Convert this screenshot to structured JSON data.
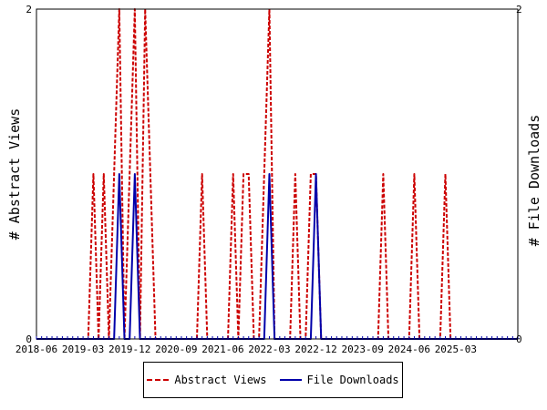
{
  "chart_data": {
    "type": "line",
    "title": "",
    "ylabel_left": "# Abstract Views",
    "ylabel_right": "# File Downloads",
    "ylim_left": [
      0,
      2
    ],
    "ylim_right": [
      0,
      2
    ],
    "yticks_left": [
      "0",
      "2"
    ],
    "yticks_right": [
      "0",
      "2"
    ],
    "xlim": [
      "2018-06",
      "2026-03"
    ],
    "xtick_labels": [
      "2018-06",
      "2019-03",
      "2019-12",
      "2020-09",
      "2021-06",
      "2022-03",
      "2022-12",
      "2023-09",
      "2024-06",
      "2025-03"
    ],
    "grid": false,
    "legend_position": "bottom",
    "series": [
      {
        "name": "Abstract Views",
        "color": "#cc0000",
        "style": "dashed",
        "points": [
          [
            "2019-05",
            1
          ],
          [
            "2019-07",
            1
          ],
          [
            "2019-09",
            1
          ],
          [
            "2019-10",
            2
          ],
          [
            "2019-12",
            1
          ],
          [
            "2020-01",
            2
          ],
          [
            "2020-03",
            2
          ],
          [
            "2020-04",
            1
          ],
          [
            "2021-02",
            1
          ],
          [
            "2021-08",
            1
          ],
          [
            "2021-10",
            1
          ],
          [
            "2021-11",
            1
          ],
          [
            "2022-02",
            1
          ],
          [
            "2022-03",
            2
          ],
          [
            "2022-08",
            1
          ],
          [
            "2022-11",
            1
          ],
          [
            "2022-12",
            1
          ],
          [
            "2024-01",
            1
          ],
          [
            "2024-07",
            1
          ],
          [
            "2025-01",
            1
          ]
        ]
      },
      {
        "name": "File Downloads",
        "color": "#0000aa",
        "style": "solid",
        "points": [
          [
            "2019-10",
            1
          ],
          [
            "2020-01",
            1
          ],
          [
            "2022-03",
            1
          ],
          [
            "2022-12",
            1
          ]
        ]
      }
    ]
  }
}
